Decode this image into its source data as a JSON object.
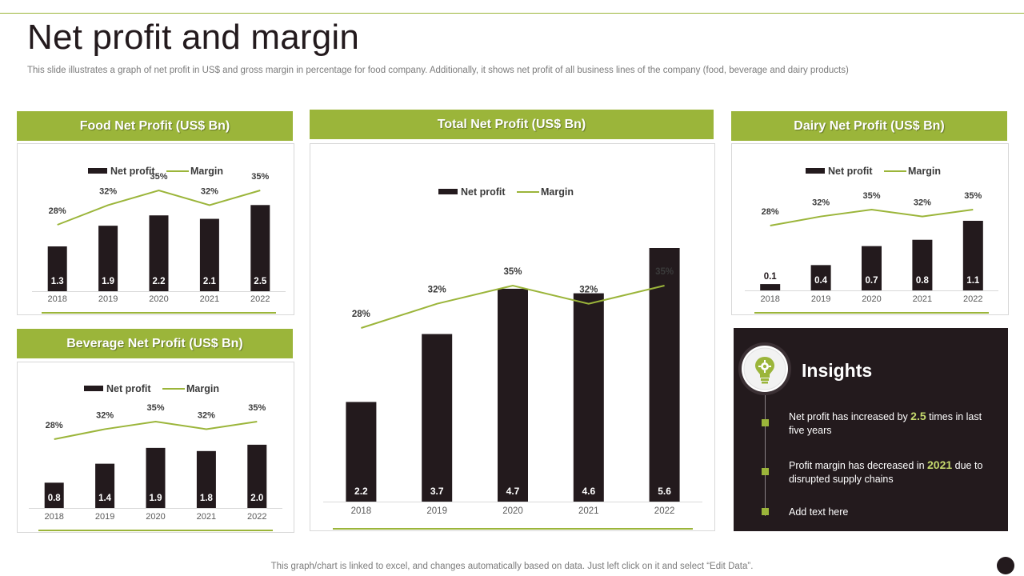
{
  "page": {
    "title": "Net profit and margin",
    "subtitle": "This slide illustrates a graph of net profit in US$ and gross margin in percentage for food company. Additionally, it shows net profit of all business lines of the company (food, beverage and dairy products)",
    "footer": "This graph/chart is linked to excel,  and changes automatically based on data. Just left click on it and select “Edit Data”."
  },
  "colors": {
    "accent": "#9bb53a",
    "bar": "#231a1d",
    "text": "#231a1d",
    "muted": "#7b7b7b"
  },
  "chart_data": [
    {
      "id": "food",
      "type": "bar",
      "title": "Food Net Profit (US$ Bn)",
      "categories": [
        "2018",
        "2019",
        "2020",
        "2021",
        "2022"
      ],
      "series": [
        {
          "name": "Net profit",
          "kind": "bar",
          "values": [
            1.3,
            1.9,
            2.2,
            2.1,
            2.5
          ],
          "labels": [
            "1.3",
            "1.9",
            "2.2",
            "2.1",
            "2.5"
          ]
        },
        {
          "name": "Margin",
          "kind": "line",
          "values": [
            28,
            32,
            35,
            32,
            35
          ],
          "labels": [
            "28%",
            "32%",
            "35%",
            "32%",
            "35%"
          ]
        }
      ],
      "legend": "top-center"
    },
    {
      "id": "beverage",
      "type": "bar",
      "title": "Beverage Net Profit (US$ Bn)",
      "categories": [
        "2018",
        "2019",
        "2020",
        "2021",
        "2022"
      ],
      "series": [
        {
          "name": "Net profit",
          "kind": "bar",
          "values": [
            0.8,
            1.4,
            1.9,
            1.8,
            2.0
          ],
          "labels": [
            "0.8",
            "1.4",
            "1.9",
            "1.8",
            "2.0"
          ]
        },
        {
          "name": "Margin",
          "kind": "line",
          "values": [
            28,
            32,
            35,
            32,
            35
          ],
          "labels": [
            "28%",
            "32%",
            "35%",
            "32%",
            "35%"
          ]
        }
      ],
      "legend": "top-center"
    },
    {
      "id": "total",
      "type": "bar",
      "title": "Total Net Profit (US$ Bn)",
      "categories": [
        "2018",
        "2019",
        "2020",
        "2021",
        "2022"
      ],
      "series": [
        {
          "name": "Net profit",
          "kind": "bar",
          "values": [
            2.2,
            3.7,
            4.7,
            4.6,
            5.6
          ],
          "labels": [
            "2.2",
            "3.7",
            "4.7",
            "4.6",
            "5.6"
          ]
        },
        {
          "name": "Margin",
          "kind": "line",
          "values": [
            28,
            32,
            35,
            32,
            35
          ],
          "labels": [
            "28%",
            "32%",
            "35%",
            "32%",
            "35%"
          ]
        }
      ],
      "legend": "top-center"
    },
    {
      "id": "dairy",
      "type": "bar",
      "title": "Dairy Net Profit (US$ Bn)",
      "categories": [
        "2018",
        "2019",
        "2020",
        "2021",
        "2022"
      ],
      "series": [
        {
          "name": "Net profit",
          "kind": "bar",
          "values": [
            0.1,
            0.4,
            0.7,
            0.8,
            1.1
          ],
          "labels": [
            "0.1",
            "0.4",
            "0.7",
            "0.8",
            "1.1"
          ]
        },
        {
          "name": "Margin",
          "kind": "line",
          "values": [
            28,
            32,
            35,
            32,
            35
          ],
          "labels": [
            "28%",
            "32%",
            "35%",
            "32%",
            "35%"
          ]
        }
      ],
      "legend": "top-center"
    }
  ],
  "insights": {
    "title": "Insights",
    "icon": "lightbulb-gear-icon",
    "items": [
      {
        "before": "Net profit has increased by ",
        "highlight": "2.5",
        "after": " times in last five  years"
      },
      {
        "before": "Profit margin has decreased in ",
        "highlight": "2021",
        "after": " due to disrupted supply chains"
      },
      {
        "before": "Add text here",
        "highlight": "",
        "after": ""
      }
    ]
  }
}
